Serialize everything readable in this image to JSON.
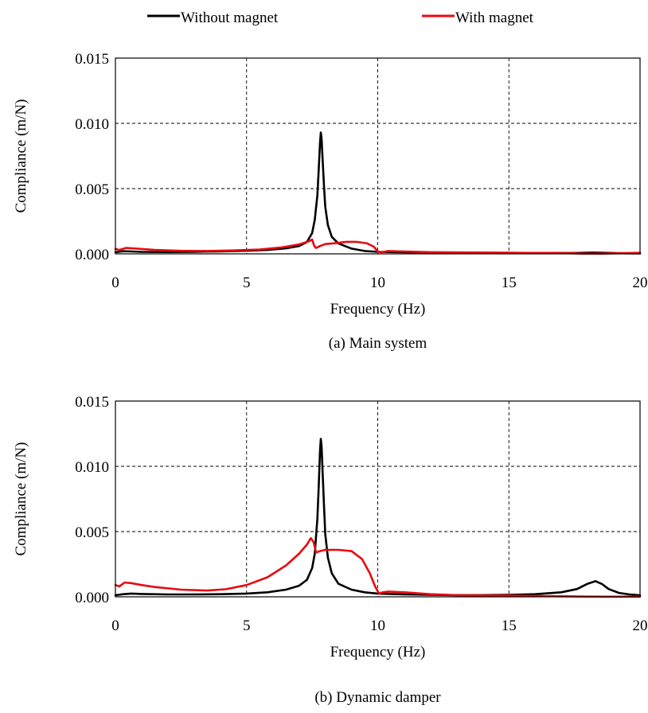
{
  "legend": {
    "items": [
      {
        "label": "Without magnet",
        "color": "#000000"
      },
      {
        "label": "With magnet",
        "color": "#e8090f"
      }
    ]
  },
  "chart_data": [
    {
      "type": "line",
      "caption": "(a) Main system",
      "xlabel": "Frequency (Hz)",
      "ylabel": "Compliance (m/N)",
      "xlim": [
        0,
        20
      ],
      "ylim": [
        0,
        0.015
      ],
      "xticks": [
        0,
        5,
        10,
        15,
        20
      ],
      "yticks": [
        0,
        0.005,
        0.01,
        0.015
      ],
      "xtick_labels": [
        "0",
        "5",
        "10",
        "15",
        "20"
      ],
      "ytick_labels": [
        "0.000",
        "0.005",
        "0.010",
        "0.015"
      ],
      "grid": true,
      "series": [
        {
          "name": "Without magnet",
          "color": "#000000",
          "points": [
            [
              0,
              0.00012
            ],
            [
              0.3,
              0.0002
            ],
            [
              0.6,
              0.00018
            ],
            [
              1,
              0.00015
            ],
            [
              2,
              0.00014
            ],
            [
              3,
              0.00016
            ],
            [
              4,
              0.00019
            ],
            [
              5,
              0.00024
            ],
            [
              5.8,
              0.0003
            ],
            [
              6.5,
              0.00042
            ],
            [
              7.0,
              0.0006
            ],
            [
              7.3,
              0.0009
            ],
            [
              7.5,
              0.0016
            ],
            [
              7.6,
              0.0026
            ],
            [
              7.7,
              0.0045
            ],
            [
              7.75,
              0.0065
            ],
            [
              7.8,
              0.0085
            ],
            [
              7.83,
              0.0093
            ],
            [
              7.86,
              0.0088
            ],
            [
              7.9,
              0.0072
            ],
            [
              7.95,
              0.0052
            ],
            [
              8.0,
              0.0036
            ],
            [
              8.1,
              0.0022
            ],
            [
              8.25,
              0.0013
            ],
            [
              8.5,
              0.0008
            ],
            [
              9.0,
              0.0004
            ],
            [
              9.5,
              0.00022
            ],
            [
              10,
              0.00015
            ],
            [
              11,
              0.00012
            ],
            [
              12,
              0.0001
            ],
            [
              14,
              8e-05
            ],
            [
              16,
              7e-05
            ],
            [
              17.5,
              7e-05
            ],
            [
              18.2,
              0.0001
            ],
            [
              18.6,
              8e-05
            ],
            [
              19.5,
              4e-05
            ],
            [
              20,
              3e-05
            ]
          ]
        },
        {
          "name": "With magnet",
          "color": "#e8090f",
          "points": [
            [
              0,
              0.00038
            ],
            [
              0.15,
              0.0003
            ],
            [
              0.4,
              0.00045
            ],
            [
              0.8,
              0.0004
            ],
            [
              1.5,
              0.0003
            ],
            [
              2.5,
              0.00023
            ],
            [
              3.5,
              0.00022
            ],
            [
              4.5,
              0.00026
            ],
            [
              5.5,
              0.00033
            ],
            [
              6.3,
              0.00048
            ],
            [
              7.0,
              0.00072
            ],
            [
              7.4,
              0.00098
            ],
            [
              7.5,
              0.0011
            ],
            [
              7.58,
              0.0006
            ],
            [
              7.65,
              0.00045
            ],
            [
              7.8,
              0.0006
            ],
            [
              8.0,
              0.00075
            ],
            [
              8.4,
              0.00082
            ],
            [
              8.8,
              0.00092
            ],
            [
              9.2,
              0.00092
            ],
            [
              9.6,
              0.0008
            ],
            [
              9.85,
              0.00055
            ],
            [
              10.0,
              0.00018
            ],
            [
              10.15,
              0.00012
            ],
            [
              10.4,
              0.00022
            ],
            [
              11,
              0.00018
            ],
            [
              12,
              0.00013
            ],
            [
              13,
              0.00011
            ],
            [
              14,
              0.0001
            ],
            [
              15,
              9e-05
            ],
            [
              16,
              7e-05
            ],
            [
              17,
              6e-05
            ],
            [
              17.8,
              2e-05
            ],
            [
              18.5,
              1e-05
            ],
            [
              19.3,
              5e-05
            ],
            [
              20,
              8e-05
            ]
          ]
        }
      ]
    },
    {
      "type": "line",
      "caption": "(b) Dynamic damper",
      "xlabel": "Frequency (Hz)",
      "ylabel": "Compliance (m/N)",
      "xlim": [
        0,
        20
      ],
      "ylim": [
        0,
        0.015
      ],
      "xticks": [
        0,
        5,
        10,
        15,
        20
      ],
      "yticks": [
        0,
        0.005,
        0.01,
        0.015
      ],
      "xtick_labels": [
        "0",
        "5",
        "10",
        "15",
        "20"
      ],
      "ytick_labels": [
        "0.000",
        "0.005",
        "0.010",
        "0.015"
      ],
      "grid": true,
      "series": [
        {
          "name": "Without magnet",
          "color": "#000000",
          "points": [
            [
              0,
              0.00012
            ],
            [
              0.3,
              0.0002
            ],
            [
              0.6,
              0.00025
            ],
            [
              1,
              0.00022
            ],
            [
              2,
              0.00018
            ],
            [
              3,
              0.00018
            ],
            [
              4,
              0.0002
            ],
            [
              5,
              0.00025
            ],
            [
              5.8,
              0.00035
            ],
            [
              6.5,
              0.00055
            ],
            [
              7.0,
              0.00085
            ],
            [
              7.3,
              0.0013
            ],
            [
              7.5,
              0.0022
            ],
            [
              7.6,
              0.0033
            ],
            [
              7.7,
              0.006
            ],
            [
              7.75,
              0.0085
            ],
            [
              7.8,
              0.0112
            ],
            [
              7.83,
              0.0121
            ],
            [
              7.86,
              0.0115
            ],
            [
              7.9,
              0.0095
            ],
            [
              7.95,
              0.007
            ],
            [
              8.0,
              0.0048
            ],
            [
              8.1,
              0.003
            ],
            [
              8.25,
              0.0018
            ],
            [
              8.5,
              0.001
            ],
            [
              9.0,
              0.00055
            ],
            [
              9.5,
              0.00035
            ],
            [
              10,
              0.00025
            ],
            [
              11,
              0.00018
            ],
            [
              12,
              0.00015
            ],
            [
              13,
              0.00013
            ],
            [
              14,
              0.00013
            ],
            [
              15,
              0.00015
            ],
            [
              16,
              0.0002
            ],
            [
              17,
              0.00035
            ],
            [
              17.6,
              0.0006
            ],
            [
              18.0,
              0.001
            ],
            [
              18.3,
              0.0012
            ],
            [
              18.55,
              0.00098
            ],
            [
              18.8,
              0.0006
            ],
            [
              19.2,
              0.0003
            ],
            [
              19.6,
              0.00018
            ],
            [
              20,
              0.00012
            ]
          ]
        },
        {
          "name": "With magnet",
          "color": "#e8090f",
          "points": [
            [
              0,
              0.0009
            ],
            [
              0.15,
              0.0008
            ],
            [
              0.35,
              0.0011
            ],
            [
              0.6,
              0.00105
            ],
            [
              1,
              0.0009
            ],
            [
              1.5,
              0.00075
            ],
            [
              2.5,
              0.00055
            ],
            [
              3.5,
              0.00048
            ],
            [
              4.2,
              0.00058
            ],
            [
              5,
              0.0009
            ],
            [
              5.8,
              0.0015
            ],
            [
              6.5,
              0.0024
            ],
            [
              7.0,
              0.0033
            ],
            [
              7.3,
              0.004
            ],
            [
              7.45,
              0.0045
            ],
            [
              7.55,
              0.0042
            ],
            [
              7.65,
              0.0034
            ],
            [
              7.8,
              0.0035
            ],
            [
              8.0,
              0.0036
            ],
            [
              8.5,
              0.0036
            ],
            [
              9.0,
              0.0035
            ],
            [
              9.4,
              0.0029
            ],
            [
              9.7,
              0.0018
            ],
            [
              9.9,
              0.0008
            ],
            [
              10.05,
              0.00025
            ],
            [
              10.2,
              0.00035
            ],
            [
              10.4,
              0.0004
            ],
            [
              11,
              0.00035
            ],
            [
              12,
              0.0002
            ],
            [
              13,
              0.00013
            ],
            [
              14,
              0.0001
            ],
            [
              15,
              0.0001
            ],
            [
              16,
              7e-05
            ],
            [
              17,
              4e-05
            ],
            [
              18,
              2e-05
            ],
            [
              19,
              1e-05
            ],
            [
              20,
              2e-05
            ]
          ]
        }
      ]
    }
  ]
}
